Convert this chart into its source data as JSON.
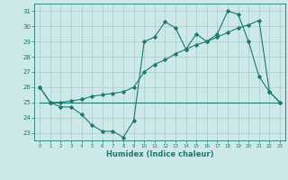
{
  "xlabel": "Humidex (Indice chaleur)",
  "x": [
    0,
    1,
    2,
    3,
    4,
    5,
    6,
    7,
    8,
    9,
    10,
    11,
    12,
    13,
    14,
    15,
    16,
    17,
    18,
    19,
    20,
    21,
    22,
    23
  ],
  "line1": [
    26.0,
    25.0,
    24.7,
    24.7,
    24.2,
    23.5,
    23.1,
    23.1,
    22.7,
    23.8,
    29.0,
    29.3,
    30.3,
    29.9,
    28.5,
    29.5,
    29.0,
    29.5,
    31.0,
    30.8,
    29.0,
    26.7,
    25.7,
    25.0
  ],
  "line2": [
    25.0,
    25.0,
    25.0,
    25.0,
    25.0,
    25.0,
    25.0,
    25.0,
    25.0,
    25.0,
    25.0,
    25.0,
    25.0,
    25.0,
    25.0,
    25.0,
    25.0,
    25.0,
    25.0,
    25.0,
    25.0,
    25.0,
    25.0,
    25.0
  ],
  "line3": [
    26.0,
    25.0,
    25.0,
    25.1,
    25.2,
    25.4,
    25.5,
    25.6,
    25.7,
    26.0,
    27.0,
    27.5,
    27.8,
    28.2,
    28.5,
    28.8,
    29.0,
    29.3,
    29.6,
    29.9,
    30.1,
    30.4,
    25.7,
    25.0
  ],
  "ylim": [
    22.5,
    31.5
  ],
  "xlim": [
    -0.5,
    23.5
  ],
  "yticks": [
    23,
    24,
    25,
    26,
    27,
    28,
    29,
    30,
    31
  ],
  "xticks": [
    0,
    1,
    2,
    3,
    4,
    5,
    6,
    7,
    8,
    9,
    10,
    11,
    12,
    13,
    14,
    15,
    16,
    17,
    18,
    19,
    20,
    21,
    22,
    23
  ],
  "line_color": "#1a7a6e",
  "bg_color": "#cce8e8",
  "grid_color": "#aacccc"
}
